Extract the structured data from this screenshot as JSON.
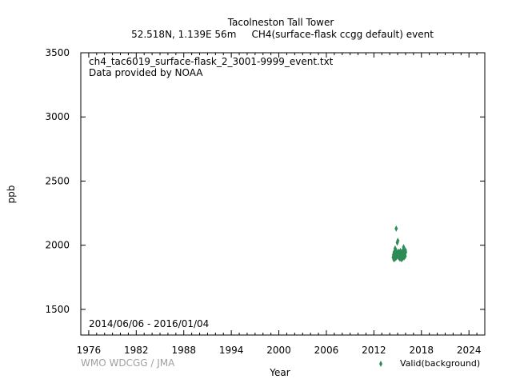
{
  "chart_data": {
    "type": "scatter",
    "title": "Tacolneston Tall Tower",
    "subtitle": "52.518N, 1.139E 56m     CH4(surface-flask ccgg default) event",
    "file_name": "ch4_tac6019_surface-flask_2_3001-9999_event.txt",
    "provider": "Data provided by NOAA",
    "date_range": "2014/06/06 - 2016/01/04",
    "xlabel": "Year",
    "ylabel": "ppb",
    "watermark": "WMO WDCGG / JMA",
    "legend": "top-right",
    "legend_label": "Valid(background)",
    "marker_color": "#2e8b57",
    "grid": false,
    "xlim": [
      1975,
      2026
    ],
    "ylim": [
      1300,
      3500
    ],
    "xticks": [
      1976,
      1982,
      1988,
      1994,
      2000,
      2006,
      2012,
      2018,
      2024
    ],
    "yticks": [
      1500,
      2000,
      2500,
      3000,
      3500
    ],
    "series": [
      {
        "name": "Valid(background)",
        "x": [
          2014.43,
          2014.47,
          2014.52,
          2014.55,
          2014.58,
          2014.62,
          2014.65,
          2014.68,
          2014.72,
          2014.75,
          2014.78,
          2014.82,
          2014.85,
          2014.88,
          2014.92,
          2014.95,
          2014.98,
          2015.02,
          2015.05,
          2015.08,
          2015.12,
          2015.15,
          2015.18,
          2015.22,
          2015.25,
          2015.28,
          2015.32,
          2015.35,
          2015.38,
          2015.42,
          2015.45,
          2015.48,
          2015.52,
          2015.55,
          2015.58,
          2015.62,
          2015.65,
          2015.68,
          2015.72,
          2015.75,
          2015.78,
          2015.82,
          2015.85,
          2015.88,
          2015.92,
          2015.95,
          2015.98,
          2016.01
        ],
        "y": [
          1905,
          1925,
          1890,
          1945,
          1910,
          1895,
          1930,
          1975,
          1900,
          1915,
          1960,
          2130,
          1905,
          1940,
          1920,
          2020,
          1935,
          2035,
          1915,
          1950,
          1905,
          1930,
          1945,
          1910,
          1925,
          1895,
          1920,
          1955,
          1900,
          1935,
          1915,
          1890,
          1945,
          1925,
          1910,
          1930,
          1900,
          1960,
          1920,
          1985,
          1935,
          1905,
          1950,
          1925,
          1940,
          1915,
          1960,
          1945
        ]
      }
    ]
  }
}
